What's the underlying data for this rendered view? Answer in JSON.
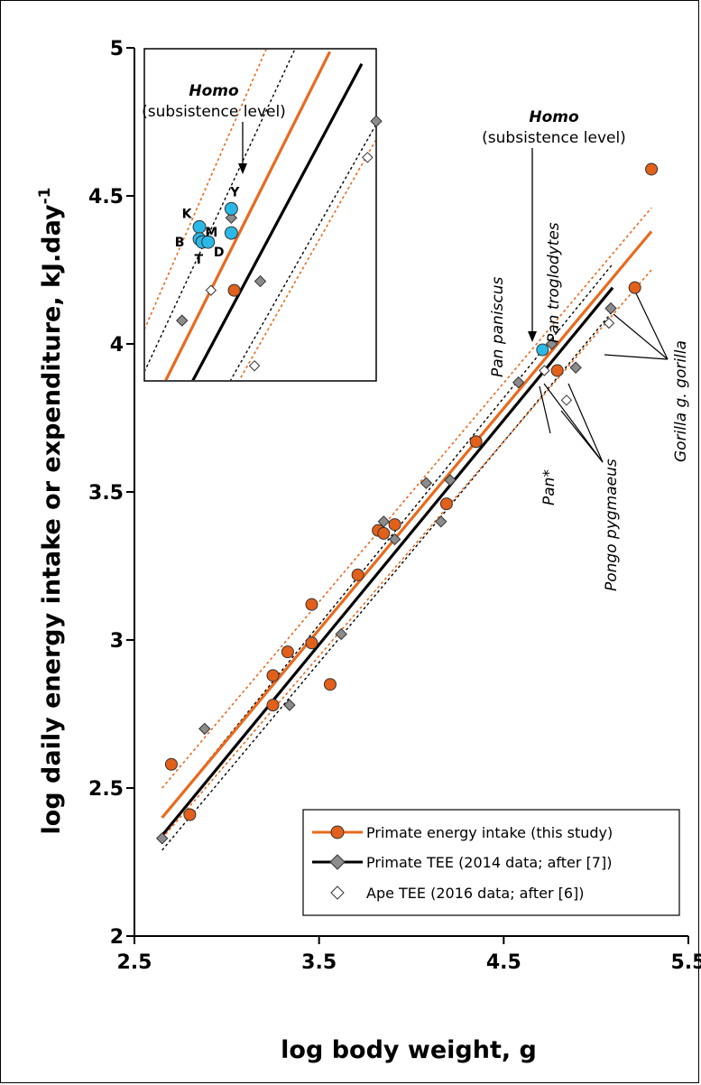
{
  "chart_data": {
    "type": "scatter",
    "xlabel": "log body weight, g",
    "ylabel_main": "log daily energy intake or expenditure, kJ.day",
    "ylabel_sup": "-1",
    "xlim": [
      2.5,
      5.5
    ],
    "ylim": [
      2,
      5
    ],
    "x_ticks": [
      "2.5",
      "3.5",
      "4.5",
      "5.5"
    ],
    "y_ticks": [
      "2",
      "2.5",
      "3",
      "3.5",
      "4",
      "4.5",
      "5"
    ],
    "colors": {
      "intake": "#e86a1e",
      "intake_fill": "#e2601a",
      "tee": "#000000",
      "tee_fill": "#8c8c8c",
      "homo_fill": "#2ab8e6"
    },
    "series": [
      {
        "name": "Primate energy intake (this study)",
        "marker": "circle",
        "points": [
          [
            2.7,
            2.58
          ],
          [
            2.8,
            2.41
          ],
          [
            3.25,
            2.88
          ],
          [
            3.25,
            2.78
          ],
          [
            3.33,
            2.96
          ],
          [
            3.46,
            3.12
          ],
          [
            3.46,
            2.99
          ],
          [
            3.56,
            2.85
          ],
          [
            3.71,
            3.22
          ],
          [
            3.82,
            3.37
          ],
          [
            3.85,
            3.36
          ],
          [
            3.91,
            3.39
          ],
          [
            4.19,
            3.46
          ],
          [
            4.35,
            3.67
          ],
          [
            4.79,
            3.91
          ],
          [
            5.21,
            4.19
          ],
          [
            5.3,
            4.59
          ]
        ]
      },
      {
        "name": "Primate TEE (2014 data; after [7])",
        "marker": "diamond",
        "points": [
          [
            2.65,
            2.33
          ],
          [
            2.88,
            2.7
          ],
          [
            3.34,
            2.78
          ],
          [
            3.62,
            3.02
          ],
          [
            3.85,
            3.4
          ],
          [
            3.91,
            3.34
          ],
          [
            4.08,
            3.53
          ],
          [
            4.16,
            3.4
          ],
          [
            4.21,
            3.54
          ],
          [
            4.58,
            3.87
          ],
          [
            4.76,
            4.0
          ],
          [
            4.89,
            3.92
          ],
          [
            5.08,
            4.12
          ]
        ]
      },
      {
        "name": "Ape TEE (2016 data; after [6])",
        "marker": "open-diamond",
        "points": [
          [
            4.72,
            3.91
          ],
          [
            4.84,
            3.81
          ],
          [
            5.07,
            4.07
          ]
        ]
      }
    ],
    "homo_point": {
      "x": 4.71,
      "y": 3.98
    },
    "lines": {
      "intake": {
        "x": [
          2.65,
          5.3
        ],
        "y": [
          2.4,
          4.38
        ]
      },
      "tee": {
        "x": [
          2.65,
          5.09
        ],
        "y": [
          2.34,
          4.19
        ]
      }
    },
    "annotations": {
      "homo_bold": "Homo",
      "homo_sub": "(subsistence level)",
      "pan_paniscus": "Pan paniscus",
      "pan_troglodytes": "Pan troglodytes",
      "pan_star": "Pan*",
      "pongo": "Pongo pygmaeus",
      "gorilla": "Gorilla g. gorilla"
    },
    "inset": {
      "xlim": [
        4.5,
        5.3
      ],
      "ylim": [
        3.9,
        5.0
      ],
      "homo_points": [
        {
          "label": "K",
          "x": 4.69,
          "y": 4.41
        },
        {
          "label": "B",
          "x": 4.69,
          "y": 4.37
        },
        {
          "label": "T",
          "x": 4.7,
          "y": 4.36
        },
        {
          "label": "D",
          "x": 4.72,
          "y": 4.36
        },
        {
          "label": "Y",
          "x": 4.8,
          "y": 4.47
        },
        {
          "label": "M",
          "x": 4.8,
          "y": 4.39
        }
      ],
      "intake_points": [
        [
          4.81,
          4.2
        ]
      ],
      "tee_points": [
        [
          4.63,
          4.1
        ],
        [
          4.8,
          4.44
        ],
        [
          4.9,
          4.23
        ],
        [
          5.3,
          4.76
        ]
      ],
      "ape_points": [
        [
          4.73,
          4.2
        ],
        [
          4.88,
          3.95
        ],
        [
          5.27,
          4.64
        ]
      ]
    }
  },
  "legend": {
    "intake": "Primate energy intake (this study)",
    "tee": "Primate TEE (2014 data; after [7])",
    "ape": "Ape TEE (2016 data; after [6])"
  }
}
